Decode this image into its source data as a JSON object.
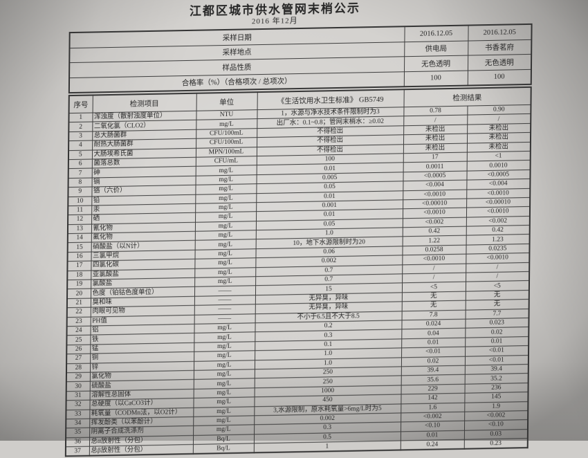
{
  "title": "江都区城市供水管网末梢公示",
  "subtitle": "2016 年12月",
  "info_rows": [
    {
      "label": "采样日期",
      "v1": "2016.12.05",
      "v2": "2016.12.05"
    },
    {
      "label": "采样地点",
      "v1": "供电局",
      "v2": "书香茗府"
    },
    {
      "label": "样品性质",
      "v1": "无色透明",
      "v2": "无色透明"
    },
    {
      "label": "合格率（%）（合格项次 / 总项次）",
      "v1": "100",
      "v2": "100"
    }
  ],
  "columns": {
    "no": "序号",
    "item": "检测项目",
    "unit": "单位",
    "standard": "《生活饮用水卫生标准》  GB5749",
    "result": "检测结果"
  },
  "rows": [
    [
      "1",
      "浑浊度（散射浊度单位）",
      "NTU",
      "1，水源与净水技术条件限制时为3",
      "0.78",
      "0.90"
    ],
    [
      "2",
      "二氧化氯（CLO2）",
      "mg/L",
      "出厂水：0.1~0.8；管网末梢水：≥0.02",
      "/",
      "/"
    ],
    [
      "3",
      "总大肠菌群",
      "CFU/100mL",
      "不得检出",
      "未检出",
      "未检出"
    ],
    [
      "4",
      "耐热大肠菌群",
      "CFU/100mL",
      "不得检出",
      "未检出",
      "未检出"
    ],
    [
      "5",
      "大肠埃希氏菌",
      "MPN/100mL",
      "不得检出",
      "未检出",
      "未检出"
    ],
    [
      "6",
      "菌落总数",
      "CFU/mL",
      "100",
      "17",
      "<1"
    ],
    [
      "7",
      "砷",
      "mg/L",
      "0.01",
      "0.0011",
      "0.0010"
    ],
    [
      "8",
      "镉",
      "mg/L",
      "0.005",
      "<0.0005",
      "<0.0005"
    ],
    [
      "9",
      "铬（六价）",
      "mg/L",
      "0.05",
      "<0.004",
      "<0.004"
    ],
    [
      "10",
      "铅",
      "mg/L",
      "0.01",
      "<0.0010",
      "<0.0010"
    ],
    [
      "11",
      "汞",
      "mg/L",
      "0.001",
      "<0.00010",
      "<0.00010"
    ],
    [
      "12",
      "硒",
      "mg/L",
      "0.01",
      "<0.0010",
      "<0.0010"
    ],
    [
      "13",
      "氰化物",
      "mg/L",
      "0.05",
      "<0.002",
      "<0.002"
    ],
    [
      "14",
      "氟化物",
      "mg/L",
      "1.0",
      "0.42",
      "0.42"
    ],
    [
      "15",
      "硝酸盐（以N计）",
      "mg/L",
      "10，地下水源限制时为20",
      "1.22",
      "1.23"
    ],
    [
      "16",
      "三氯甲烷",
      "mg/L",
      "0.06",
      "0.0258",
      "0.0235"
    ],
    [
      "17",
      "四氯化碳",
      "mg/L",
      "0.002",
      "<0.0010",
      "<0.0010"
    ],
    [
      "18",
      "亚氯酸盐",
      "mg/L",
      "0.7",
      "/",
      "/"
    ],
    [
      "19",
      "氯酸盐",
      "mg/L",
      "0.7",
      "/",
      "/"
    ],
    [
      "20",
      "色度（铂钴色度单位）",
      "——",
      "15",
      "<5",
      "<5"
    ],
    [
      "21",
      "臭和味",
      "——",
      "无异臭，异味",
      "无",
      "无"
    ],
    [
      "22",
      "肉眼可见物",
      "——",
      "无异臭，异味",
      "无",
      "无"
    ],
    [
      "23",
      "PH值",
      "——",
      "不小于6.5且不大于8.5",
      "7.8",
      "7.7"
    ],
    [
      "24",
      "铝",
      "mg/L",
      "0.2",
      "0.024",
      "0.023"
    ],
    [
      "25",
      "铁",
      "mg/L",
      "0.3",
      "0.04",
      "0.02"
    ],
    [
      "26",
      "锰",
      "mg/L",
      "0.1",
      "0.01",
      "0.01"
    ],
    [
      "27",
      "铜",
      "mg/L",
      "1.0",
      "<0.01",
      "<0.01"
    ],
    [
      "28",
      "锌",
      "mg/L",
      "1.0",
      "0.02",
      "<0.01"
    ],
    [
      "29",
      "氯化物",
      "mg/L",
      "250",
      "39.4",
      "39.4"
    ],
    [
      "30",
      "硫酸盐",
      "mg/L",
      "250",
      "35.6",
      "35.2"
    ],
    [
      "31",
      "溶解性总固体",
      "mg/L",
      "1000",
      "229",
      "236"
    ],
    [
      "32",
      "总硬度（以CaCO3计）",
      "mg/L",
      "450",
      "142",
      "145"
    ],
    [
      "33",
      "耗氧量（CODMn法，以O2计）",
      "mg/L",
      "3,水源限制，原水耗氧量>6mg/L时为5",
      "1.6",
      "1.9"
    ],
    [
      "34",
      "挥发酚类（以苯酚计）",
      "mg/L",
      "0.002",
      "<0.002",
      "<0.002"
    ],
    [
      "35",
      "阴离子合成洗涤剂",
      "mg/L",
      "0.3",
      "<0.10",
      "<0.10"
    ],
    [
      "36",
      "总α放射性（分包）",
      "Bq/L",
      "0.5",
      "0.01",
      "0.03"
    ],
    [
      "37",
      "总β放射性（分包）",
      "Bq/L",
      "1",
      "0.24",
      "0.23"
    ]
  ],
  "colors": {
    "paper": "#d4d2cf",
    "ink": "#262626",
    "line": "#3c3c3c"
  }
}
